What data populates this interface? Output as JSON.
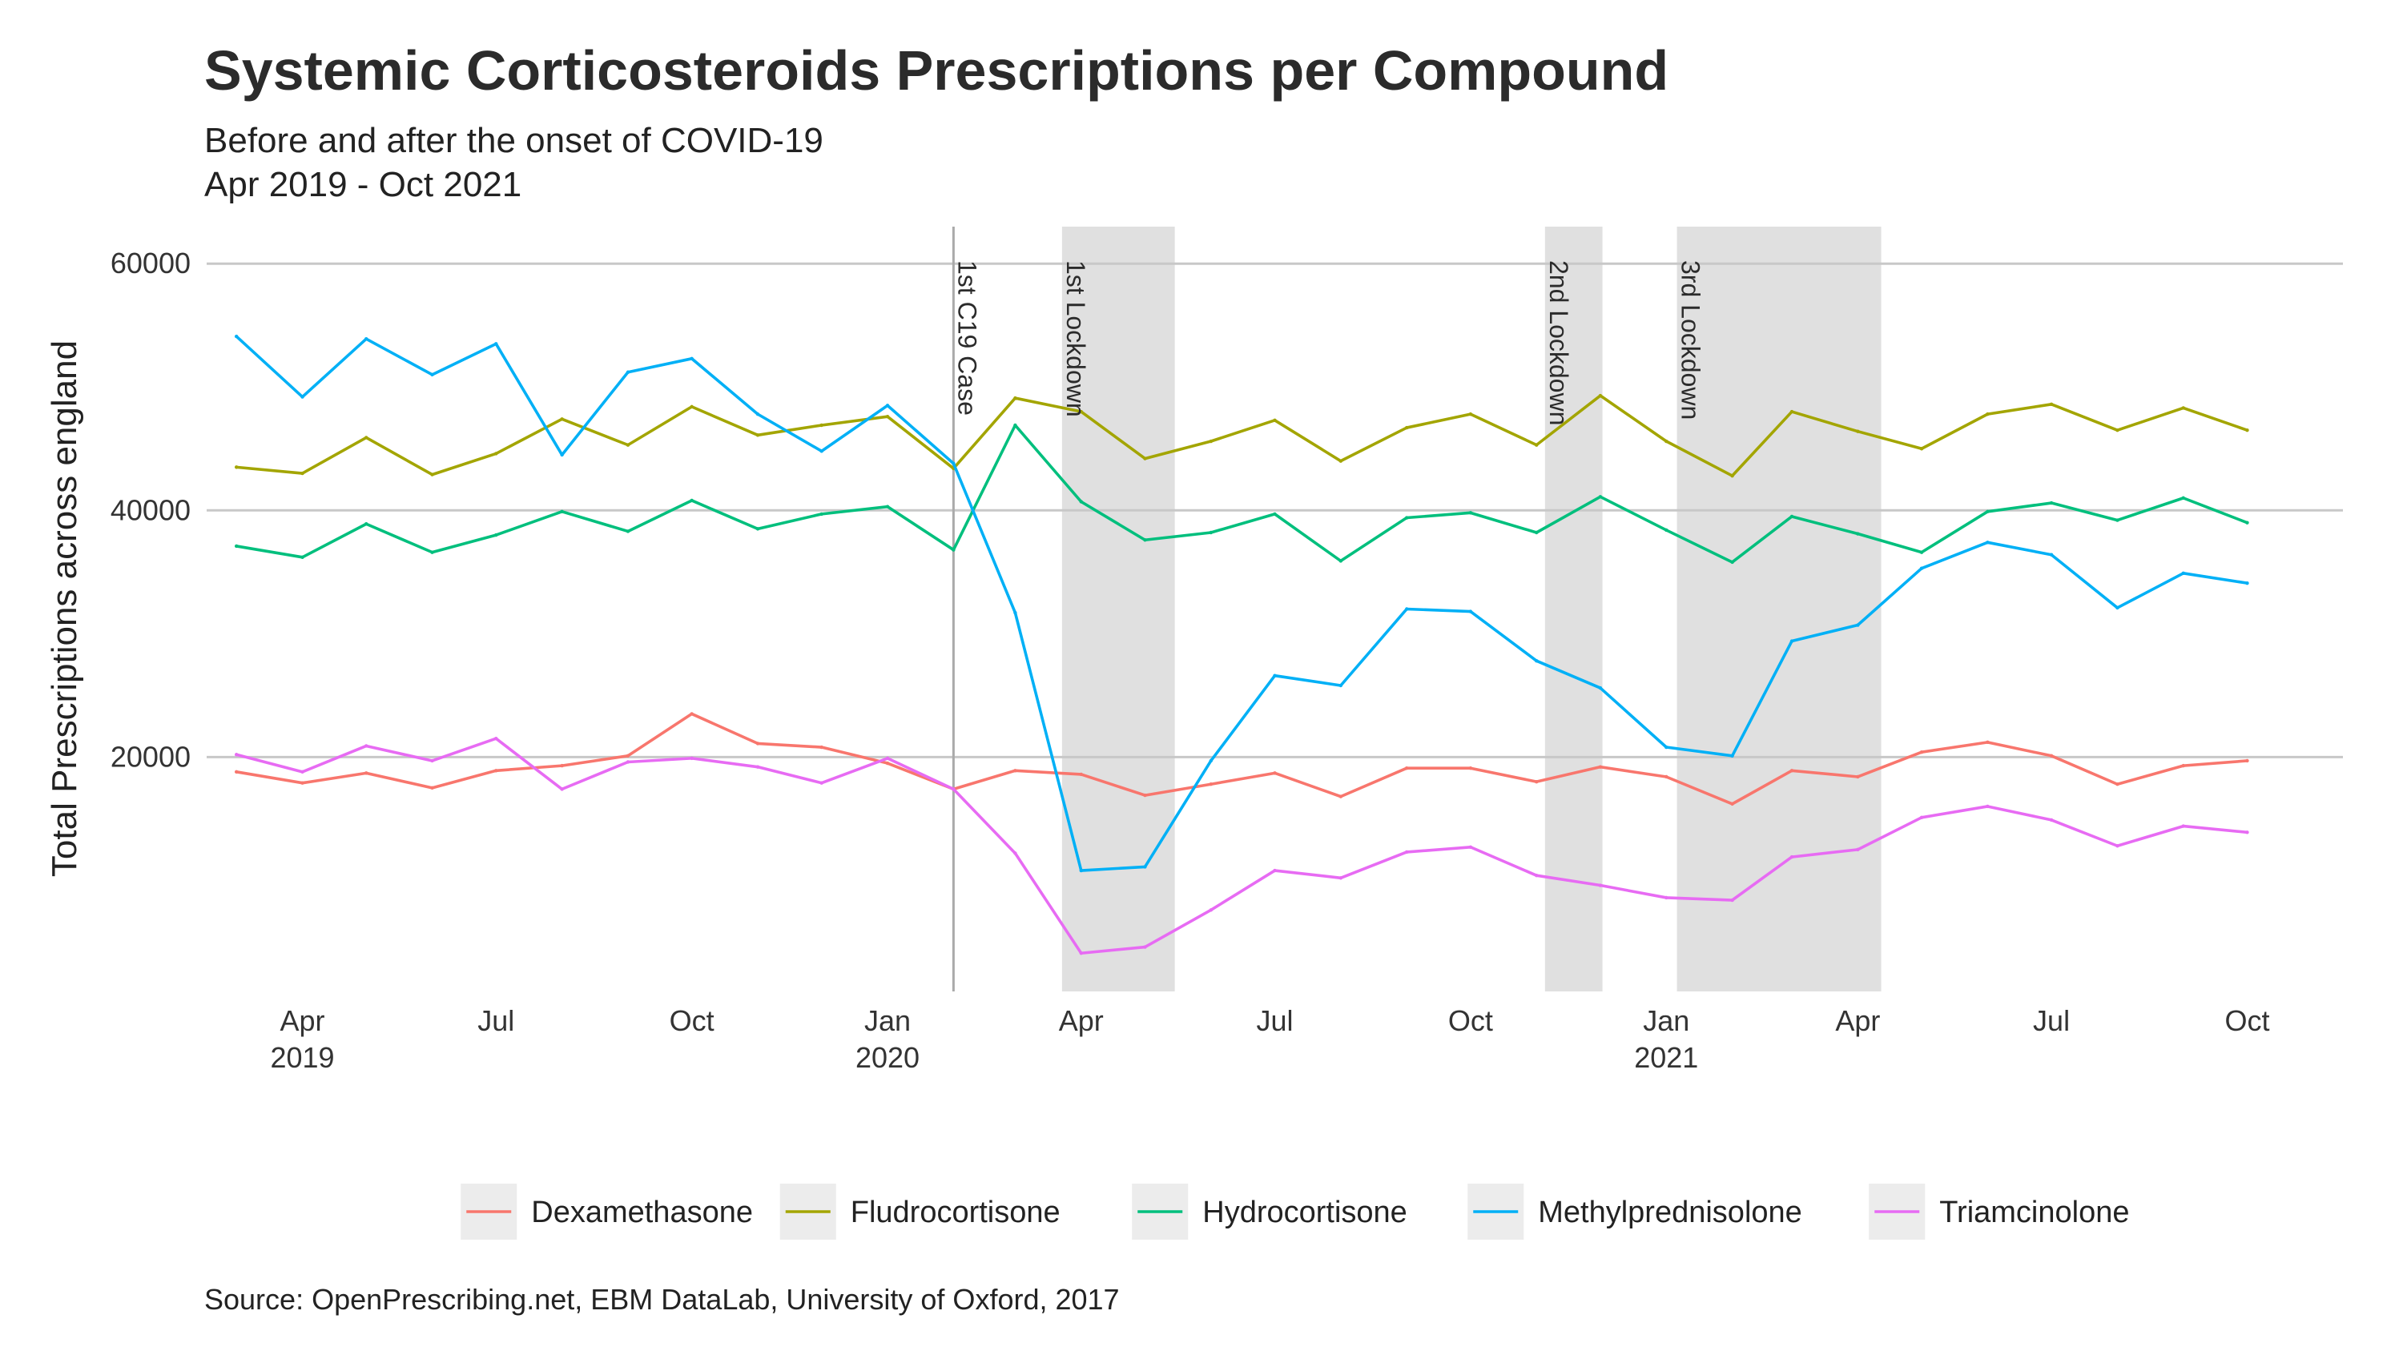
{
  "chart_data": {
    "type": "line",
    "title": "Systemic Corticosteroids Prescriptions per Compound",
    "subtitle_lines": [
      "Before and after the onset of COVID-19",
      "Apr 2019 - Oct 2021"
    ],
    "ylabel": "Total Prescriptions across england",
    "caption": "Source: OpenPrescribing.net, EBM DataLab, University of Oxford, 2017",
    "ylim": [
      1000,
      63000
    ],
    "y_ticks": [
      20000,
      40000,
      60000
    ],
    "y_tick_labels": [
      "20000",
      "40000",
      "60000"
    ],
    "x_range": [
      "2019-02-15",
      "2021-11-15"
    ],
    "x_ticks": [
      {
        "date": "2019-04-01",
        "label": "Apr",
        "year": "2019"
      },
      {
        "date": "2019-07-01",
        "label": "Jul",
        "year": ""
      },
      {
        "date": "2019-10-01",
        "label": "Oct",
        "year": ""
      },
      {
        "date": "2020-01-01",
        "label": "Jan",
        "year": "2020"
      },
      {
        "date": "2020-04-01",
        "label": "Apr",
        "year": ""
      },
      {
        "date": "2020-07-01",
        "label": "Jul",
        "year": ""
      },
      {
        "date": "2020-10-01",
        "label": "Oct",
        "year": ""
      },
      {
        "date": "2021-01-01",
        "label": "Jan",
        "year": "2021"
      },
      {
        "date": "2021-04-01",
        "label": "Apr",
        "year": ""
      },
      {
        "date": "2021-07-01",
        "label": "Jul",
        "year": ""
      },
      {
        "date": "2021-10-01",
        "label": "Oct",
        "year": ""
      }
    ],
    "x": [
      "2019-03-01",
      "2019-04-01",
      "2019-05-01",
      "2019-06-01",
      "2019-07-01",
      "2019-08-01",
      "2019-09-01",
      "2019-10-01",
      "2019-11-01",
      "2019-12-01",
      "2020-01-01",
      "2020-02-01",
      "2020-03-01",
      "2020-04-01",
      "2020-05-01",
      "2020-06-01",
      "2020-07-01",
      "2020-08-01",
      "2020-09-01",
      "2020-10-01",
      "2020-11-01",
      "2020-12-01",
      "2021-01-01",
      "2021-02-01",
      "2021-03-01",
      "2021-04-01",
      "2021-05-01",
      "2021-06-01",
      "2021-07-01",
      "2021-08-01",
      "2021-09-01",
      "2021-10-01"
    ],
    "series": [
      {
        "name": "Dexamethasone",
        "color": "#F8766D",
        "values": [
          18800,
          17900,
          18700,
          17500,
          18900,
          19300,
          20100,
          23500,
          21100,
          20800,
          19500,
          17400,
          18900,
          18600,
          16900,
          17800,
          18700,
          16800,
          19100,
          19100,
          18000,
          19200,
          18400,
          16200,
          18900,
          18400,
          20400,
          21200,
          20100,
          17800,
          19300,
          19700
        ]
      },
      {
        "name": "Fludrocortisone",
        "color": "#A3A500",
        "values": [
          43500,
          43000,
          45900,
          42900,
          44600,
          47400,
          45300,
          48400,
          46100,
          46900,
          47600,
          43400,
          49100,
          48000,
          44200,
          45600,
          47300,
          44000,
          46700,
          47800,
          45300,
          49300,
          45600,
          42800,
          48000,
          46400,
          45000,
          47800,
          48600,
          46500,
          48300,
          46500
        ]
      },
      {
        "name": "Hydrocortisone",
        "color": "#00BF7D",
        "values": [
          37100,
          36200,
          38900,
          36600,
          38000,
          39900,
          38300,
          40800,
          38500,
          39700,
          40300,
          36800,
          46900,
          40700,
          37600,
          38200,
          39700,
          35900,
          39400,
          39800,
          38200,
          41100,
          38400,
          35800,
          39500,
          38100,
          36600,
          39900,
          40600,
          39200,
          41000,
          39000
        ]
      },
      {
        "name": "Methylprednisolone",
        "color": "#00B0F6",
        "values": [
          54100,
          49200,
          53900,
          51000,
          53500,
          44500,
          51200,
          52300,
          47800,
          44800,
          48500,
          43800,
          31700,
          10800,
          11100,
          19700,
          26600,
          25800,
          32000,
          31800,
          27800,
          25600,
          20800,
          20100,
          29400,
          30700,
          35300,
          37400,
          36400,
          32100,
          34900,
          34100
        ]
      },
      {
        "name": "Triamcinolone",
        "color": "#E76BF3",
        "values": [
          20200,
          18800,
          20900,
          19700,
          21500,
          17400,
          19600,
          19900,
          19200,
          17900,
          19900,
          17400,
          12200,
          4100,
          4600,
          7600,
          10800,
          10200,
          12300,
          12700,
          10400,
          9600,
          8600,
          8400,
          11900,
          12500,
          15100,
          16000,
          14900,
          12800,
          14400,
          13900
        ]
      }
    ],
    "vlines": [
      {
        "date": "2020-02-01",
        "label": "1st C19 Case"
      }
    ],
    "shaded_periods": [
      {
        "start": "2020-03-23",
        "end": "2020-05-15",
        "label": "1st Lockdown"
      },
      {
        "start": "2020-11-05",
        "end": "2020-12-02",
        "label": "2nd Lockdown"
      },
      {
        "start": "2021-01-06",
        "end": "2021-04-12",
        "label": "3rd Lockdown"
      }
    ],
    "grid": true,
    "legend_position": "bottom",
    "colors": {
      "grid": "#c8c8c8",
      "shade": "#e0e0e0",
      "vline": "#aaaaaa"
    }
  }
}
